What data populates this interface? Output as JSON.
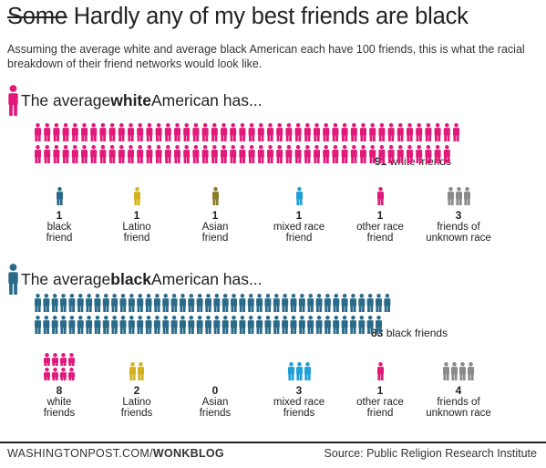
{
  "title": {
    "struck": "Some",
    "rest": "Hardly any of my best friends are black"
  },
  "subtitle": "Assuming the average white and average black American each have 100 friends, this is what the racial breakdown of their friend networks would look like.",
  "colors": {
    "white": "#e0197a",
    "black": "#2a6a89",
    "latino": "#d4b21c",
    "asian": "#8a7a2a",
    "mixed": "#1e9fd6",
    "other": "#e0197a",
    "unknown": "#8a8a8a"
  },
  "chart_data": [
    {
      "type": "bar",
      "heading": {
        "pre": "The average ",
        "bold": "white",
        "post": " American has..."
      },
      "main": {
        "value": 91,
        "label": "white friends",
        "color": "#e0197a"
      },
      "categories": [
        {
          "value": 1,
          "label": "black\nfriend",
          "color": "#2a6a89",
          "icon": "person-icon"
        },
        {
          "value": 1,
          "label": "Latino\nfriend",
          "color": "#d4b21c",
          "icon": "person-icon"
        },
        {
          "value": 1,
          "label": "Asian\nfriend",
          "color": "#8a7a2a",
          "icon": "person-icon"
        },
        {
          "value": 1,
          "label": "mixed race\nfriend",
          "color": "#1e9fd6",
          "icon": "person-icon"
        },
        {
          "value": 1,
          "label": "other race\nfriend",
          "color": "#e0197a",
          "icon": "person-icon"
        },
        {
          "value": 3,
          "label": "friends of\nunknown race",
          "color": "#8a8a8a",
          "icon": "person-icon"
        }
      ]
    },
    {
      "type": "bar",
      "heading": {
        "pre": "The average ",
        "bold": "black",
        "post": " American has..."
      },
      "main": {
        "value": 83,
        "label": "black friends",
        "color": "#2a6a89"
      },
      "categories": [
        {
          "value": 8,
          "label": "white\nfriends",
          "color": "#e0197a",
          "icon": "person-icon"
        },
        {
          "value": 2,
          "label": "Latino\nfriends",
          "color": "#d4b21c",
          "icon": "person-icon"
        },
        {
          "value": 0,
          "label": "Asian\nfriends",
          "color": "#8a7a2a",
          "icon": "person-icon"
        },
        {
          "value": 3,
          "label": "mixed race\nfriends",
          "color": "#1e9fd6",
          "icon": "person-icon"
        },
        {
          "value": 1,
          "label": "other race\nfriend",
          "color": "#e0197a",
          "icon": "person-icon"
        },
        {
          "value": 4,
          "label": "friends of\nunknown race",
          "color": "#8a8a8a",
          "icon": "person-icon"
        }
      ]
    }
  ],
  "footer": {
    "site": "WASHINGTONPOST.COM/",
    "section": "WONKBLOG",
    "source": "Source: Public Religion Research Institute"
  }
}
